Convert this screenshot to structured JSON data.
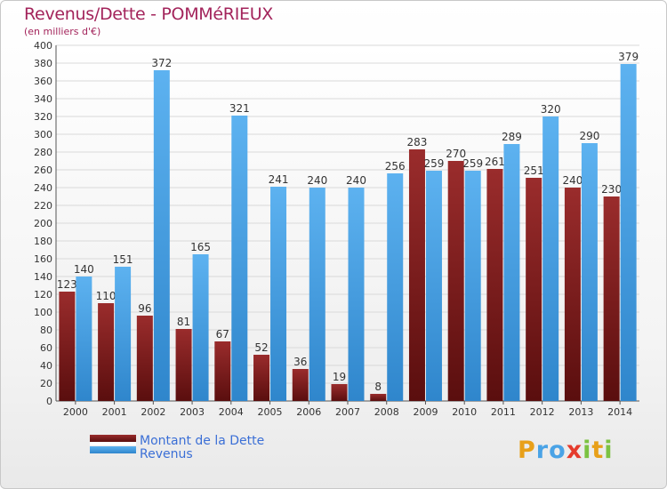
{
  "title": "Revenus/Dette - POMMéRIEUX",
  "subtitle": "(en milliers d'€)",
  "legend": {
    "items": [
      {
        "label": "Montant de la Dette",
        "color": "#7a1a1a"
      },
      {
        "label": "Revenus",
        "color": "#4aa3e6"
      }
    ]
  },
  "logo": {
    "text": "Proxiti",
    "letters": [
      "P",
      "r",
      "o",
      "x",
      "i",
      "t",
      "i"
    ]
  },
  "colors": {
    "debt": "#7a1a1a",
    "revenue": "#4aa3e6",
    "title": "#a3245b",
    "legend_text": "#3b6fd6"
  },
  "chart_data": {
    "type": "bar",
    "title": "Revenus/Dette - POMMéRIEUX",
    "subtitle": "(en milliers d'€)",
    "xlabel": "",
    "ylabel": "",
    "ylim": [
      0,
      400
    ],
    "ytick_step": 20,
    "grid": true,
    "legend_position": "bottom-left",
    "categories": [
      "2000",
      "2001",
      "2002",
      "2003",
      "2004",
      "2005",
      "2006",
      "2007",
      "2008",
      "2009",
      "2010",
      "2011",
      "2012",
      "2013",
      "2014"
    ],
    "series": [
      {
        "name": "Montant de la Dette",
        "values": [
          123,
          110,
          96,
          81,
          67,
          52,
          36,
          19,
          8,
          283,
          270,
          261,
          251,
          240,
          230
        ]
      },
      {
        "name": "Revenus",
        "values": [
          140,
          151,
          372,
          165,
          321,
          241,
          240,
          240,
          256,
          259,
          259,
          289,
          320,
          290,
          379
        ]
      }
    ]
  }
}
